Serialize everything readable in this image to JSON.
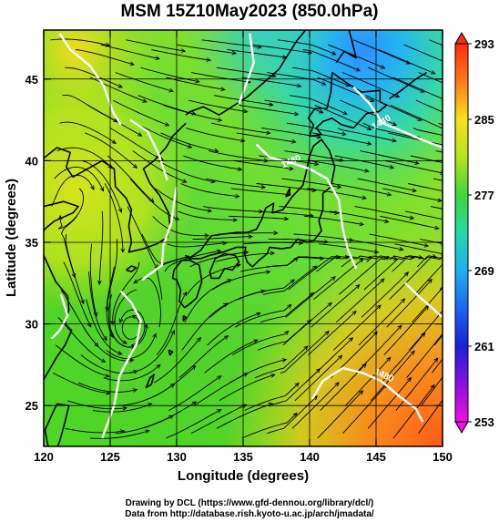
{
  "title": "MSM 15Z10May2023 (850.0hPa)",
  "x_axis": {
    "label": "Longitude (degrees)",
    "min": 120,
    "max": 150,
    "ticks": [
      "120",
      "125",
      "130",
      "135",
      "140",
      "145",
      "150"
    ],
    "tick_values": [
      120,
      125,
      130,
      135,
      140,
      145,
      150
    ]
  },
  "y_axis": {
    "label": "Latitude (degrees)",
    "min": 22.5,
    "max": 48,
    "ticks": [
      "25",
      "30",
      "35",
      "40",
      "45"
    ],
    "tick_values": [
      25,
      30,
      35,
      40,
      45
    ]
  },
  "colorbar": {
    "min": 253,
    "max": 293,
    "labels": [
      "293",
      "285",
      "277",
      "269",
      "261",
      "253"
    ],
    "label_values": [
      293,
      285,
      277,
      269,
      261,
      253
    ]
  },
  "contour_labels": [
    {
      "text": "1480",
      "lon": 138.7,
      "lat": 39.8,
      "angle": 25
    },
    {
      "text": "1440",
      "lon": 145.5,
      "lat": 42.2,
      "angle": 30
    },
    {
      "text": "1480",
      "lon": 145.5,
      "lat": 26.7,
      "angle": -25
    }
  ],
  "credits": {
    "line1": "Drawing by DCL (https://www.gfd-dennou.org/library/dcl/)",
    "line2": "Data from http://database.rish.kyoto-u.ac.jp/arch/jmadata/"
  },
  "colors": {
    "warm": "#ff6a1e",
    "mid": "#7de41c",
    "cool": "#33b7f0",
    "contour": "#ffffff"
  }
}
